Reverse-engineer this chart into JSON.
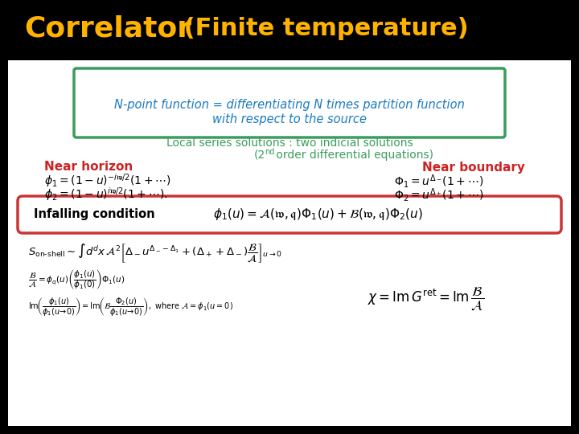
{
  "title_part1": "Correlator",
  "title_part2": " (Finite temperature)",
  "title_color1": "#FFB300",
  "title_color2": "#FFB300",
  "bg_color": "#000000",
  "slide_bg": "#FFFFFF",
  "box1_text_line1": "N-point function = differentiating N times partition function",
  "box1_text_line2": "with respect to the source",
  "box1_color": "#3a9d5d",
  "box1_text_color": "#1a7abf",
  "local_series_line1": "Local series solutions : two indicial solutions",
  "local_series_line2a": "(2",
  "local_series_line2b": "nd",
  "local_series_line2c": " order differential equations)",
  "local_series_color": "#3a9d5d",
  "near_horizon_label": "Near horizon",
  "near_boundary_label": "Near boundary",
  "label_color": "#cc2222",
  "formula_color": "#000000",
  "infalling_label": "Infalling condition",
  "infalling_box_color": "#cc3333"
}
